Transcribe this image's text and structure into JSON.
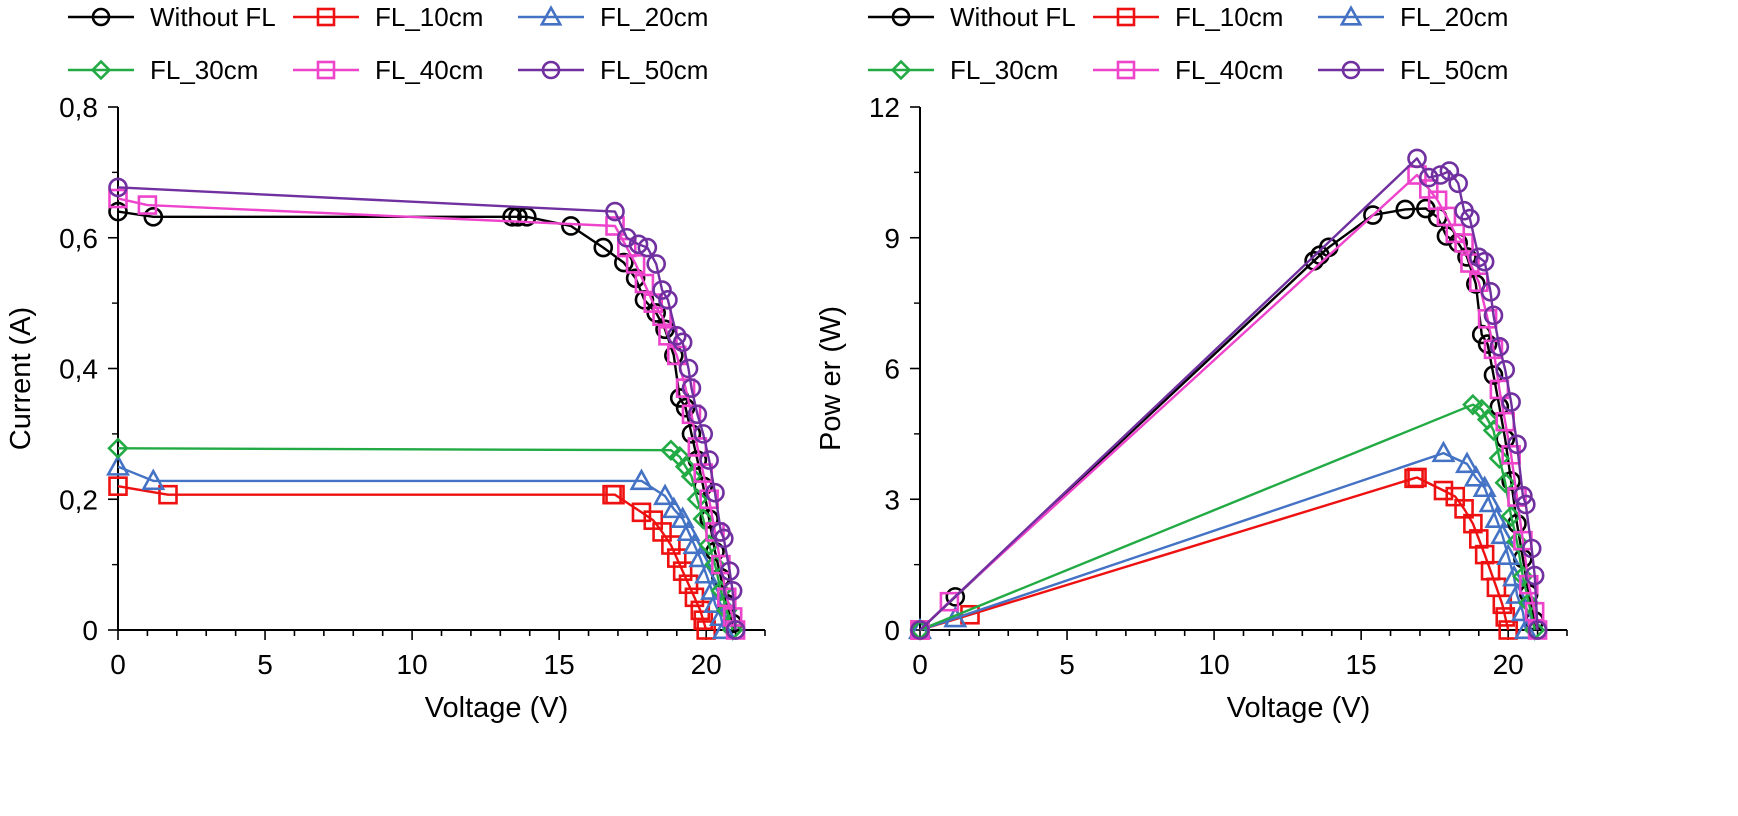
{
  "colors": {
    "Without FL": "#000000",
    "FL_10cm": "#ee1111",
    "FL_20cm": "#4472c4",
    "FL_30cm": "#22aa44",
    "FL_40cm": "#ee44cc",
    "FL_50cm": "#7030a0"
  },
  "markers": {
    "Without FL": "circle",
    "FL_10cm": "square",
    "FL_20cm": "triangle",
    "FL_30cm": "diamond",
    "FL_40cm": "square",
    "FL_50cm": "circle"
  },
  "chart_data": [
    {
      "type": "line",
      "title": "",
      "xlabel": "Voltage (V)",
      "ylabel": "Current (A)",
      "xlim": [
        0,
        22
      ],
      "ylim": [
        0,
        0.8
      ],
      "xticks": [
        "0",
        "5",
        "10",
        "15",
        "20"
      ],
      "yticks": [
        "0",
        "0,2",
        "0,4",
        "0,6",
        "0,8"
      ],
      "legend": [
        "Without FL",
        "FL_10cm",
        "FL_20cm",
        "FL_30cm",
        "FL_40cm",
        "FL_50cm"
      ],
      "legend_position": "top",
      "grid": false,
      "series": [
        {
          "name": "Without FL",
          "points": [
            [
              0,
              0.64
            ],
            [
              1.2,
              0.632
            ],
            [
              13.4,
              0.632
            ],
            [
              13.6,
              0.632
            ],
            [
              13.9,
              0.632
            ],
            [
              15.4,
              0.618
            ],
            [
              16.5,
              0.585
            ],
            [
              17.2,
              0.562
            ],
            [
              17.6,
              0.538
            ],
            [
              17.9,
              0.505
            ],
            [
              18.3,
              0.485
            ],
            [
              18.6,
              0.46
            ],
            [
              18.9,
              0.42
            ],
            [
              19.1,
              0.355
            ],
            [
              19.3,
              0.34
            ],
            [
              19.5,
              0.3
            ],
            [
              19.7,
              0.26
            ],
            [
              19.9,
              0.22
            ],
            [
              20.1,
              0.17
            ],
            [
              20.3,
              0.12
            ],
            [
              20.5,
              0.08
            ],
            [
              20.7,
              0.04
            ],
            [
              20.9,
              0.01
            ],
            [
              21.0,
              0
            ]
          ]
        },
        {
          "name": "FL_10cm",
          "points": [
            [
              0,
              0.22
            ],
            [
              1.7,
              0.207
            ],
            [
              16.8,
              0.207
            ],
            [
              16.9,
              0.207
            ],
            [
              17.8,
              0.18
            ],
            [
              18.2,
              0.168
            ],
            [
              18.5,
              0.15
            ],
            [
              18.8,
              0.13
            ],
            [
              19.0,
              0.11
            ],
            [
              19.2,
              0.09
            ],
            [
              19.4,
              0.07
            ],
            [
              19.6,
              0.05
            ],
            [
              19.8,
              0.03
            ],
            [
              19.9,
              0.015
            ],
            [
              20.0,
              0
            ]
          ]
        },
        {
          "name": "FL_20cm",
          "points": [
            [
              0,
              0.25
            ],
            [
              1.2,
              0.228
            ],
            [
              17.8,
              0.228
            ],
            [
              18.6,
              0.205
            ],
            [
              18.9,
              0.185
            ],
            [
              19.2,
              0.17
            ],
            [
              19.4,
              0.15
            ],
            [
              19.6,
              0.13
            ],
            [
              19.8,
              0.11
            ],
            [
              20.0,
              0.085
            ],
            [
              20.2,
              0.06
            ],
            [
              20.3,
              0.04
            ],
            [
              20.5,
              0.02
            ],
            [
              20.6,
              0
            ]
          ]
        },
        {
          "name": "FL_30cm",
          "points": [
            [
              0,
              0.278
            ],
            [
              18.8,
              0.275
            ],
            [
              19.1,
              0.265
            ],
            [
              19.3,
              0.25
            ],
            [
              19.5,
              0.235
            ],
            [
              19.7,
              0.2
            ],
            [
              19.9,
              0.17
            ],
            [
              20.1,
              0.13
            ],
            [
              20.3,
              0.1
            ],
            [
              20.5,
              0.06
            ],
            [
              20.7,
              0.03
            ],
            [
              20.9,
              0
            ]
          ]
        },
        {
          "name": "FL_40cm",
          "points": [
            [
              0,
              0.66
            ],
            [
              1.0,
              0.65
            ],
            [
              16.9,
              0.618
            ],
            [
              17.3,
              0.585
            ],
            [
              17.6,
              0.56
            ],
            [
              17.9,
              0.53
            ],
            [
              18.2,
              0.5
            ],
            [
              18.5,
              0.48
            ],
            [
              18.7,
              0.45
            ],
            [
              19.0,
              0.42
            ],
            [
              19.3,
              0.37
            ],
            [
              19.5,
              0.33
            ],
            [
              19.7,
              0.28
            ],
            [
              19.9,
              0.24
            ],
            [
              20.1,
              0.2
            ],
            [
              20.3,
              0.15
            ],
            [
              20.5,
              0.1
            ],
            [
              20.7,
              0.05
            ],
            [
              20.9,
              0.02
            ],
            [
              21.0,
              0
            ]
          ]
        },
        {
          "name": "FL_50cm",
          "points": [
            [
              0,
              0.677
            ],
            [
              16.9,
              0.64
            ],
            [
              17.3,
              0.6
            ],
            [
              17.7,
              0.59
            ],
            [
              18.0,
              0.585
            ],
            [
              18.3,
              0.56
            ],
            [
              18.5,
              0.52
            ],
            [
              18.7,
              0.505
            ],
            [
              19.0,
              0.45
            ],
            [
              19.2,
              0.44
            ],
            [
              19.4,
              0.4
            ],
            [
              19.5,
              0.37
            ],
            [
              19.7,
              0.33
            ],
            [
              19.9,
              0.3
            ],
            [
              20.1,
              0.26
            ],
            [
              20.3,
              0.21
            ],
            [
              20.5,
              0.15
            ],
            [
              20.6,
              0.14
            ],
            [
              20.8,
              0.09
            ],
            [
              20.9,
              0.06
            ],
            [
              21.0,
              0
            ]
          ]
        }
      ]
    },
    {
      "type": "line",
      "title": "",
      "xlabel": "Voltage (V)",
      "ylabel": "Pow er (W)",
      "xlim": [
        0,
        22
      ],
      "ylim": [
        0,
        12
      ],
      "xticks": [
        "0",
        "5",
        "10",
        "15",
        "20"
      ],
      "yticks": [
        "0",
        "3",
        "6",
        "9",
        "12"
      ],
      "legend": [
        "Without FL",
        "FL_10cm",
        "FL_20cm",
        "FL_30cm",
        "FL_40cm",
        "FL_50cm"
      ],
      "legend_position": "top",
      "grid": false,
      "series": [
        {
          "name": "Without FL",
          "points": [
            [
              0,
              0
            ],
            [
              1.2,
              0.76
            ],
            [
              13.4,
              8.47
            ],
            [
              13.6,
              8.6
            ],
            [
              13.9,
              8.78
            ],
            [
              15.4,
              9.52
            ],
            [
              16.5,
              9.65
            ],
            [
              17.2,
              9.67
            ],
            [
              17.6,
              9.47
            ],
            [
              17.9,
              9.04
            ],
            [
              18.3,
              8.88
            ],
            [
              18.6,
              8.56
            ],
            [
              18.9,
              7.94
            ],
            [
              19.1,
              6.78
            ],
            [
              19.3,
              6.56
            ],
            [
              19.5,
              5.85
            ],
            [
              19.7,
              5.12
            ],
            [
              19.9,
              4.38
            ],
            [
              20.1,
              3.42
            ],
            [
              20.3,
              2.44
            ],
            [
              20.5,
              1.64
            ],
            [
              20.7,
              0.83
            ],
            [
              20.9,
              0.21
            ],
            [
              21.0,
              0
            ]
          ]
        },
        {
          "name": "FL_10cm",
          "points": [
            [
              0,
              0
            ],
            [
              1.7,
              0.35
            ],
            [
              16.8,
              3.48
            ],
            [
              16.9,
              3.5
            ],
            [
              17.8,
              3.2
            ],
            [
              18.2,
              3.06
            ],
            [
              18.5,
              2.78
            ],
            [
              18.8,
              2.44
            ],
            [
              19.0,
              2.09
            ],
            [
              19.2,
              1.73
            ],
            [
              19.4,
              1.36
            ],
            [
              19.6,
              0.98
            ],
            [
              19.8,
              0.59
            ],
            [
              19.9,
              0.3
            ],
            [
              20.0,
              0
            ]
          ]
        },
        {
          "name": "FL_20cm",
          "points": [
            [
              0,
              0
            ],
            [
              1.2,
              0.27
            ],
            [
              17.8,
              4.06
            ],
            [
              18.6,
              3.81
            ],
            [
              18.9,
              3.5
            ],
            [
              19.2,
              3.26
            ],
            [
              19.4,
              2.91
            ],
            [
              19.6,
              2.55
            ],
            [
              19.8,
              2.18
            ],
            [
              20.0,
              1.7
            ],
            [
              20.2,
              1.21
            ],
            [
              20.3,
              0.81
            ],
            [
              20.5,
              0.41
            ],
            [
              20.6,
              0
            ]
          ]
        },
        {
          "name": "FL_30cm",
          "points": [
            [
              0,
              0
            ],
            [
              18.8,
              5.17
            ],
            [
              19.1,
              5.06
            ],
            [
              19.3,
              4.83
            ],
            [
              19.5,
              4.58
            ],
            [
              19.7,
              3.94
            ],
            [
              19.9,
              3.38
            ],
            [
              20.1,
              2.61
            ],
            [
              20.3,
              2.03
            ],
            [
              20.5,
              1.23
            ],
            [
              20.7,
              0.62
            ],
            [
              20.9,
              0
            ]
          ]
        },
        {
          "name": "FL_40cm",
          "points": [
            [
              0,
              0
            ],
            [
              1.0,
              0.65
            ],
            [
              16.9,
              10.44
            ],
            [
              17.3,
              10.12
            ],
            [
              17.6,
              9.86
            ],
            [
              17.9,
              9.49
            ],
            [
              18.2,
              9.1
            ],
            [
              18.5,
              8.88
            ],
            [
              18.7,
              8.42
            ],
            [
              19.0,
              7.98
            ],
            [
              19.3,
              7.14
            ],
            [
              19.5,
              6.44
            ],
            [
              19.7,
              5.52
            ],
            [
              19.9,
              4.78
            ],
            [
              20.1,
              4.02
            ],
            [
              20.3,
              3.05
            ],
            [
              20.5,
              2.05
            ],
            [
              20.7,
              1.04
            ],
            [
              20.9,
              0.42
            ],
            [
              21.0,
              0
            ]
          ]
        },
        {
          "name": "FL_50cm",
          "points": [
            [
              0,
              0
            ],
            [
              16.9,
              10.82
            ],
            [
              17.3,
              10.38
            ],
            [
              17.7,
              10.44
            ],
            [
              18.0,
              10.53
            ],
            [
              18.3,
              10.25
            ],
            [
              18.5,
              9.62
            ],
            [
              18.7,
              9.44
            ],
            [
              19.0,
              8.55
            ],
            [
              19.2,
              8.45
            ],
            [
              19.4,
              7.76
            ],
            [
              19.5,
              7.22
            ],
            [
              19.7,
              6.5
            ],
            [
              19.9,
              5.97
            ],
            [
              20.1,
              5.23
            ],
            [
              20.3,
              4.26
            ],
            [
              20.5,
              3.08
            ],
            [
              20.6,
              2.88
            ],
            [
              20.8,
              1.87
            ],
            [
              20.9,
              1.25
            ],
            [
              21.0,
              0
            ]
          ]
        }
      ]
    }
  ]
}
